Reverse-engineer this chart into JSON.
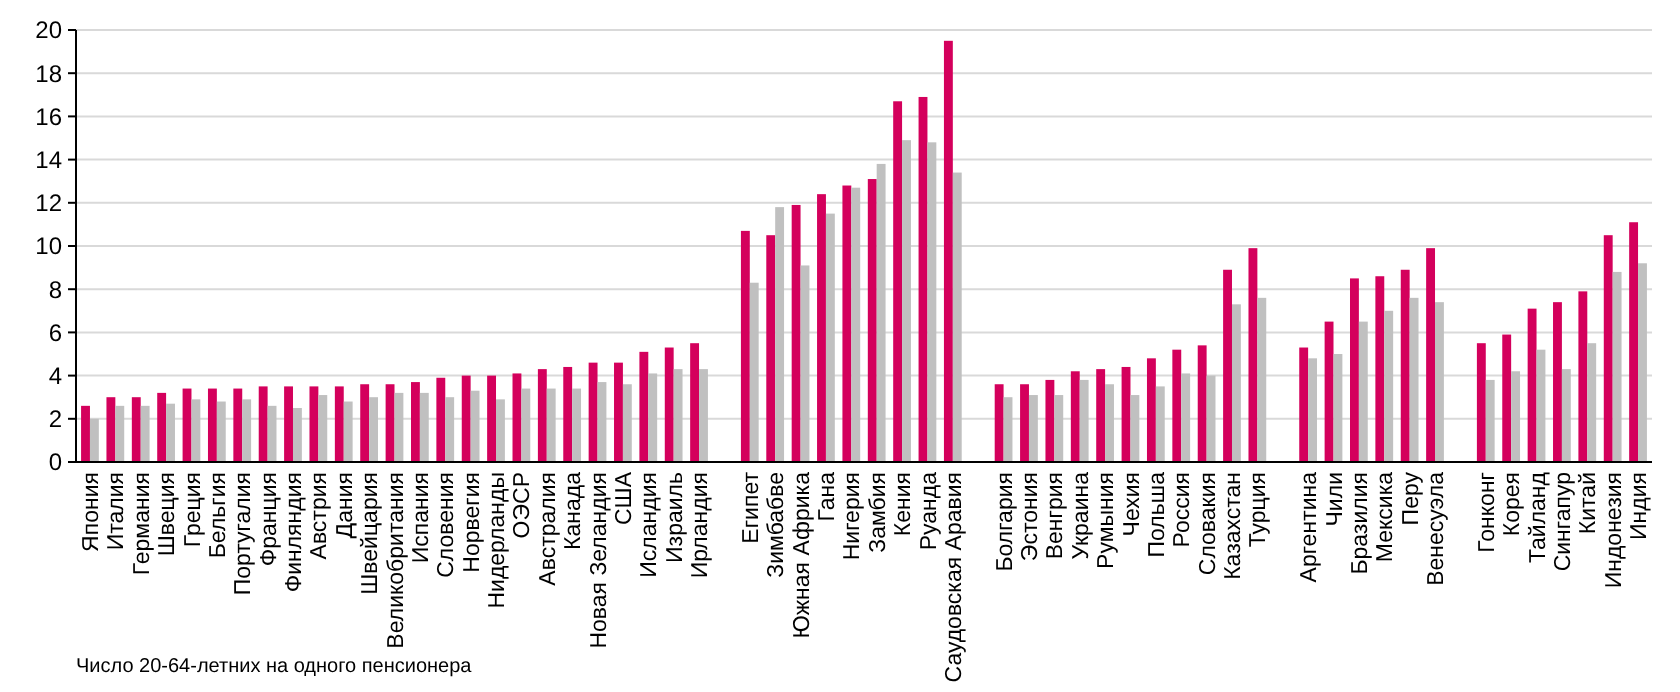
{
  "chart_data": {
    "type": "bar",
    "categories": [
      "Япония",
      "Италия",
      "Германия",
      "Швеция",
      "Греция",
      "Бельгия",
      "Португалия",
      "Франция",
      "Финляндия",
      "Австрия",
      "Дания",
      "Швейцария",
      "Великобритания",
      "Испания",
      "Словения",
      "Норвегия",
      "Нидерланды",
      "ОЭСР",
      "Австралия",
      "Канада",
      "Новая Зеландия",
      "США",
      "Исландия",
      "Израиль",
      "Ирландия",
      null,
      "Египет",
      "Зимбабве",
      "Южная Африка",
      "Гана",
      "Нигерия",
      "Замбия",
      "Кения",
      "Руанда",
      "Саудовская Аравия",
      null,
      "Болгария",
      "Эстония",
      "Венгрия",
      "Украина",
      "Румыния",
      "Чехия",
      "Польша",
      "Россия",
      "Словакия",
      "Казахстан",
      "Турция",
      null,
      "Аргентина",
      "Чили",
      "Бразилия",
      "Мексика",
      "Перу",
      "Венесуэла",
      null,
      "Гонконг",
      "Корея",
      "Тайланд",
      "Сингапур",
      "Китай",
      "Индонезия",
      "Индия"
    ],
    "series": [
      {
        "color": "#d4005c",
        "values": [
          2.6,
          3.0,
          3.0,
          3.2,
          3.4,
          3.4,
          3.4,
          3.5,
          3.5,
          3.5,
          3.5,
          3.6,
          3.6,
          3.7,
          3.9,
          4.0,
          4.0,
          4.1,
          4.3,
          4.4,
          4.6,
          4.6,
          5.1,
          5.3,
          5.5,
          null,
          10.7,
          10.5,
          11.9,
          12.4,
          12.8,
          13.1,
          16.7,
          16.9,
          19.5,
          null,
          3.6,
          3.6,
          3.8,
          4.2,
          4.3,
          4.4,
          4.8,
          5.2,
          5.4,
          8.9,
          9.9,
          null,
          5.3,
          6.5,
          8.5,
          8.6,
          8.9,
          9.9,
          null,
          5.5,
          5.9,
          7.1,
          7.4,
          7.9,
          10.5,
          11.1
        ]
      },
      {
        "color": "#c0c0c0",
        "values": [
          2.0,
          2.6,
          2.6,
          2.7,
          2.9,
          2.8,
          2.9,
          2.6,
          2.5,
          3.1,
          2.8,
          3.0,
          3.2,
          3.2,
          3.0,
          3.3,
          2.9,
          3.4,
          3.4,
          3.4,
          3.7,
          3.6,
          4.1,
          4.3,
          4.3,
          null,
          8.3,
          11.8,
          9.1,
          11.5,
          12.7,
          13.8,
          14.9,
          14.8,
          13.4,
          null,
          3.0,
          3.1,
          3.1,
          3.8,
          3.6,
          3.1,
          3.5,
          4.1,
          4.0,
          7.3,
          7.6,
          null,
          4.8,
          5.0,
          6.5,
          7.0,
          7.6,
          7.4,
          null,
          3.8,
          4.2,
          5.2,
          4.3,
          5.5,
          8.8,
          9.2
        ]
      }
    ],
    "ylim": [
      0,
      20
    ],
    "yticks": [
      0,
      2,
      4,
      6,
      8,
      10,
      12,
      14,
      16,
      18,
      20
    ],
    "grid": "y",
    "annotations": [
      "Число 20-64-летних на одного пенсионера"
    ]
  }
}
